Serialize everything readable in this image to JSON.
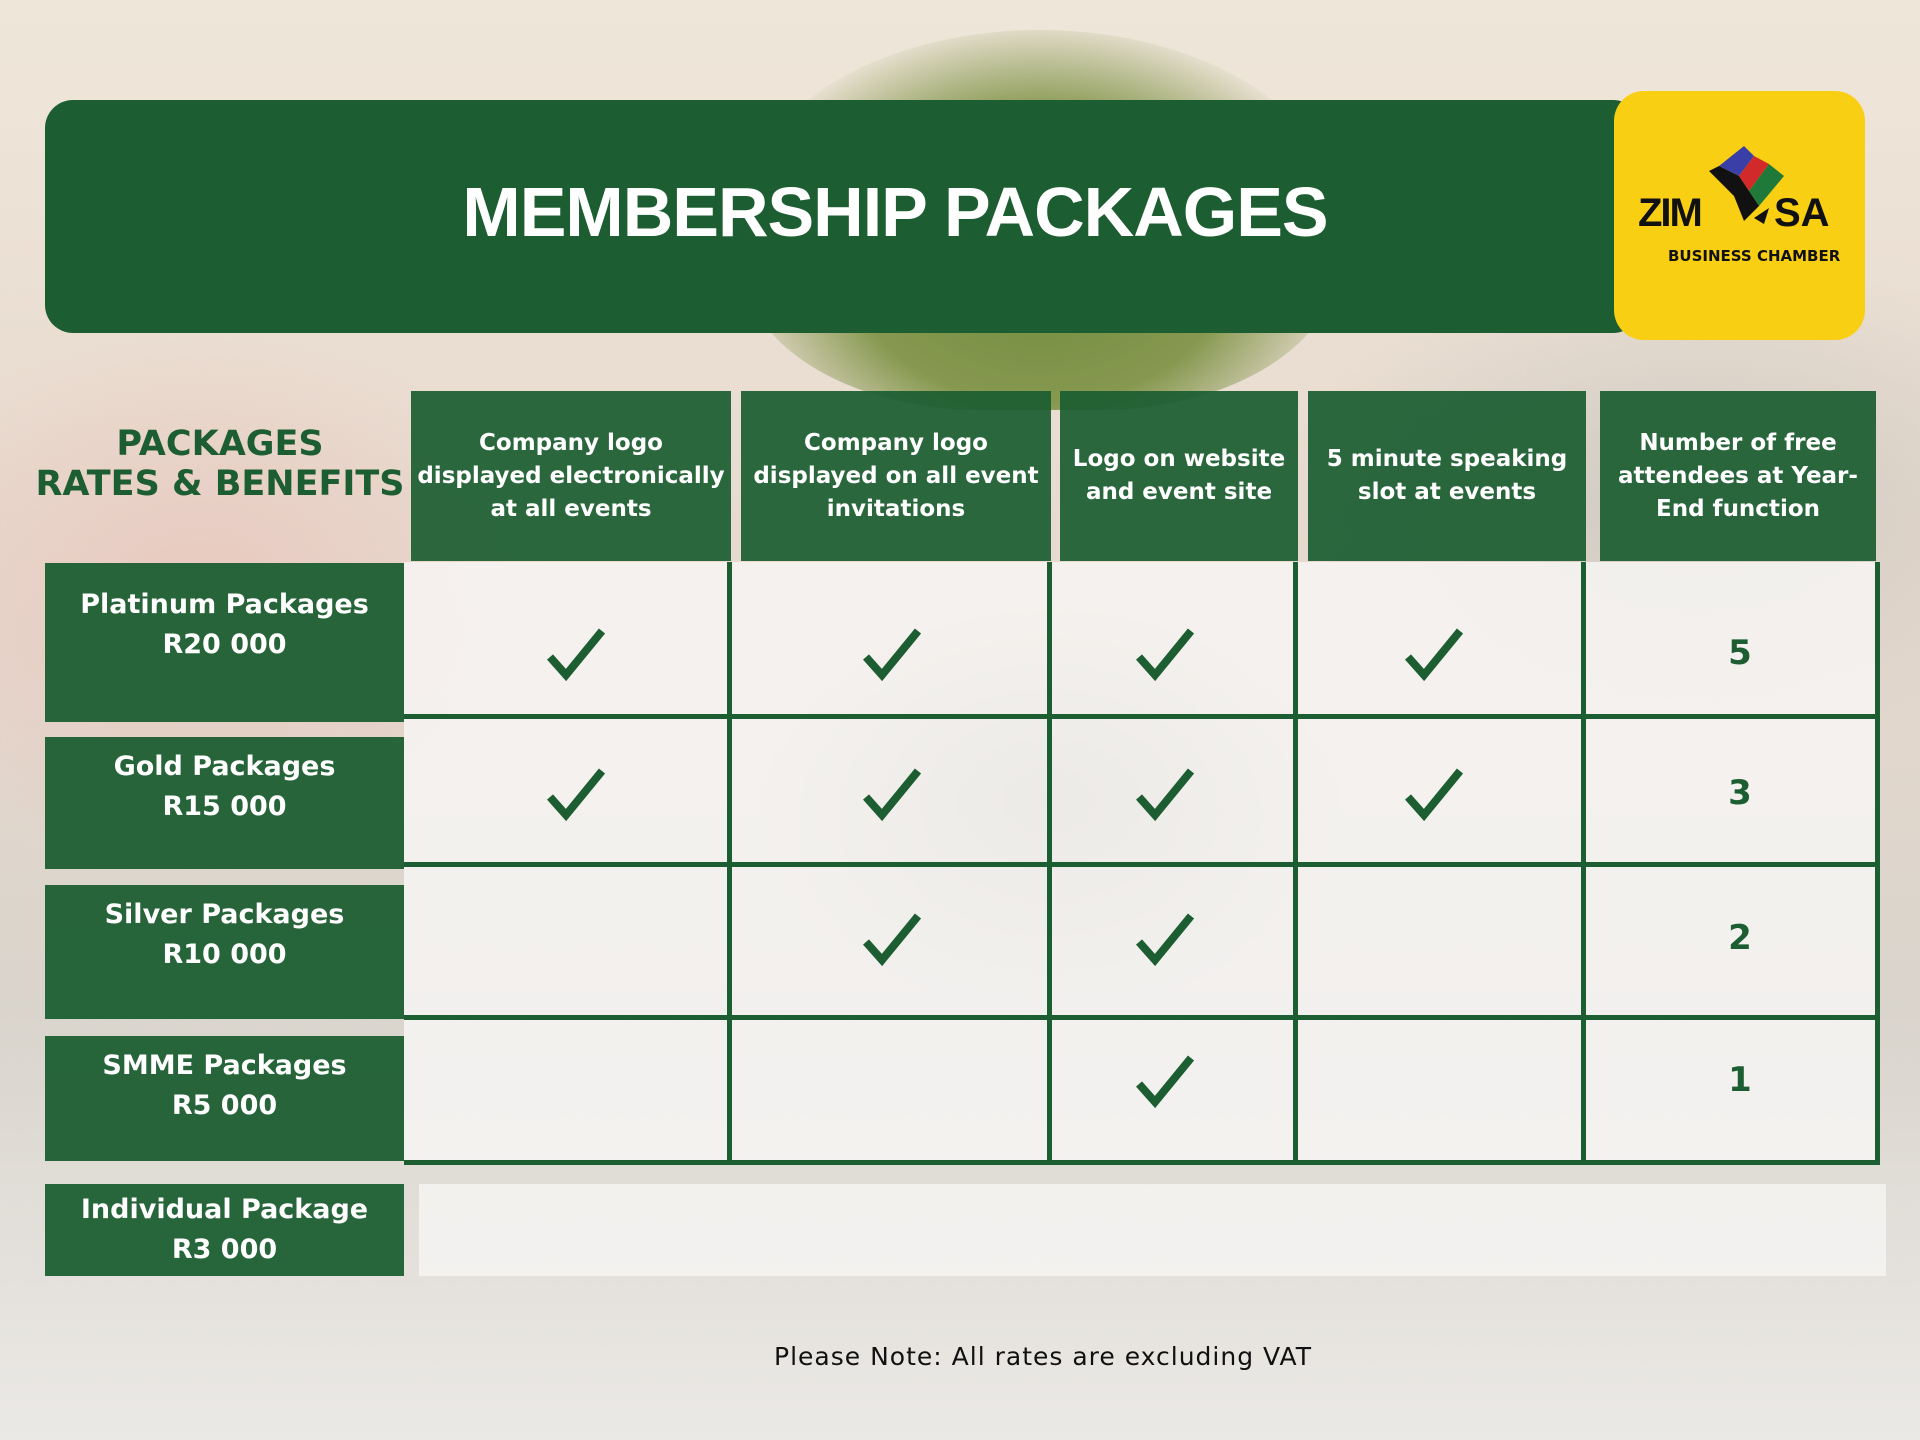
{
  "title": "MEMBERSHIP PACKAGES",
  "logo": {
    "left": "ZIM",
    "right": "SA",
    "subtitle": "BUSINESS CHAMBER"
  },
  "table_label": {
    "line1": "PACKAGES",
    "line2": "RATES & BENEFITS"
  },
  "columns": [
    "Company logo displayed electronically at all events",
    "Company logo displayed on all event invitations",
    "Logo on website and event site",
    "5 minute speaking slot at events",
    "Number of free attendees at Year-End function"
  ],
  "rows": [
    {
      "name": "Platinum Packages",
      "price": "R20 000",
      "checks": [
        true,
        true,
        true,
        true
      ],
      "attendees": "5"
    },
    {
      "name": "Gold Packages",
      "price": "R15 000",
      "checks": [
        true,
        true,
        true,
        true
      ],
      "attendees": "3"
    },
    {
      "name": "Silver Packages",
      "price": "R10 000",
      "checks": [
        false,
        true,
        true,
        false
      ],
      "attendees": "2"
    },
    {
      "name": "SMME Packages",
      "price": "R5 000",
      "checks": [
        false,
        false,
        true,
        false
      ],
      "attendees": "1"
    },
    {
      "name": "Individual Package",
      "price": "R3 000"
    }
  ],
  "note": "Please Note: All rates are excluding VAT",
  "colors": {
    "green": "#1c5e31",
    "yellow": "#f8cf12"
  }
}
